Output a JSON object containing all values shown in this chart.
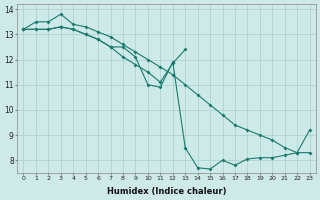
{
  "xlabel": "Humidex (Indice chaleur)",
  "bg_color": "#ceeae8",
  "grid_color": "#aacfcc",
  "line_color": "#1a7a6e",
  "xlim": [
    -0.5,
    23.5
  ],
  "ylim": [
    7.5,
    14.2
  ],
  "xticks": [
    0,
    1,
    2,
    3,
    4,
    5,
    6,
    7,
    8,
    9,
    10,
    11,
    12,
    13,
    14,
    15,
    16,
    17,
    18,
    19,
    20,
    21,
    22,
    23
  ],
  "yticks": [
    8,
    9,
    10,
    11,
    12,
    13,
    14
  ],
  "line1_x": [
    0,
    1,
    2,
    3,
    4,
    5,
    6,
    7,
    8,
    9,
    10,
    11,
    12,
    13,
    14,
    15,
    16,
    17,
    18,
    19,
    20,
    21,
    22,
    23
  ],
  "line1_y": [
    13.2,
    13.5,
    13.5,
    13.8,
    13.4,
    13.3,
    13.1,
    12.9,
    12.6,
    12.3,
    12.0,
    11.7,
    11.4,
    11.0,
    10.6,
    10.2,
    9.8,
    9.4,
    9.2,
    9.0,
    8.8,
    8.5,
    8.3,
    9.2
  ],
  "line2_x": [
    0,
    1,
    2,
    3,
    4,
    5,
    6,
    7,
    8,
    9,
    10,
    11,
    12,
    13,
    14,
    15,
    16,
    17,
    18,
    19,
    20,
    21,
    22,
    23
  ],
  "line2_y": [
    13.2,
    13.2,
    13.2,
    13.3,
    13.2,
    13.0,
    12.8,
    12.5,
    12.5,
    12.1,
    11.0,
    10.9,
    11.9,
    8.5,
    7.7,
    7.65,
    8.0,
    7.8,
    8.05,
    8.1,
    8.1,
    8.2,
    8.3,
    8.3
  ],
  "line3_x": [
    0,
    1,
    2,
    3,
    4,
    5,
    6,
    7,
    8,
    9,
    10,
    11,
    12,
    13
  ],
  "line3_y": [
    13.2,
    13.2,
    13.2,
    13.3,
    13.2,
    13.0,
    12.8,
    12.5,
    12.1,
    11.8,
    11.5,
    11.1,
    11.85,
    12.4
  ]
}
